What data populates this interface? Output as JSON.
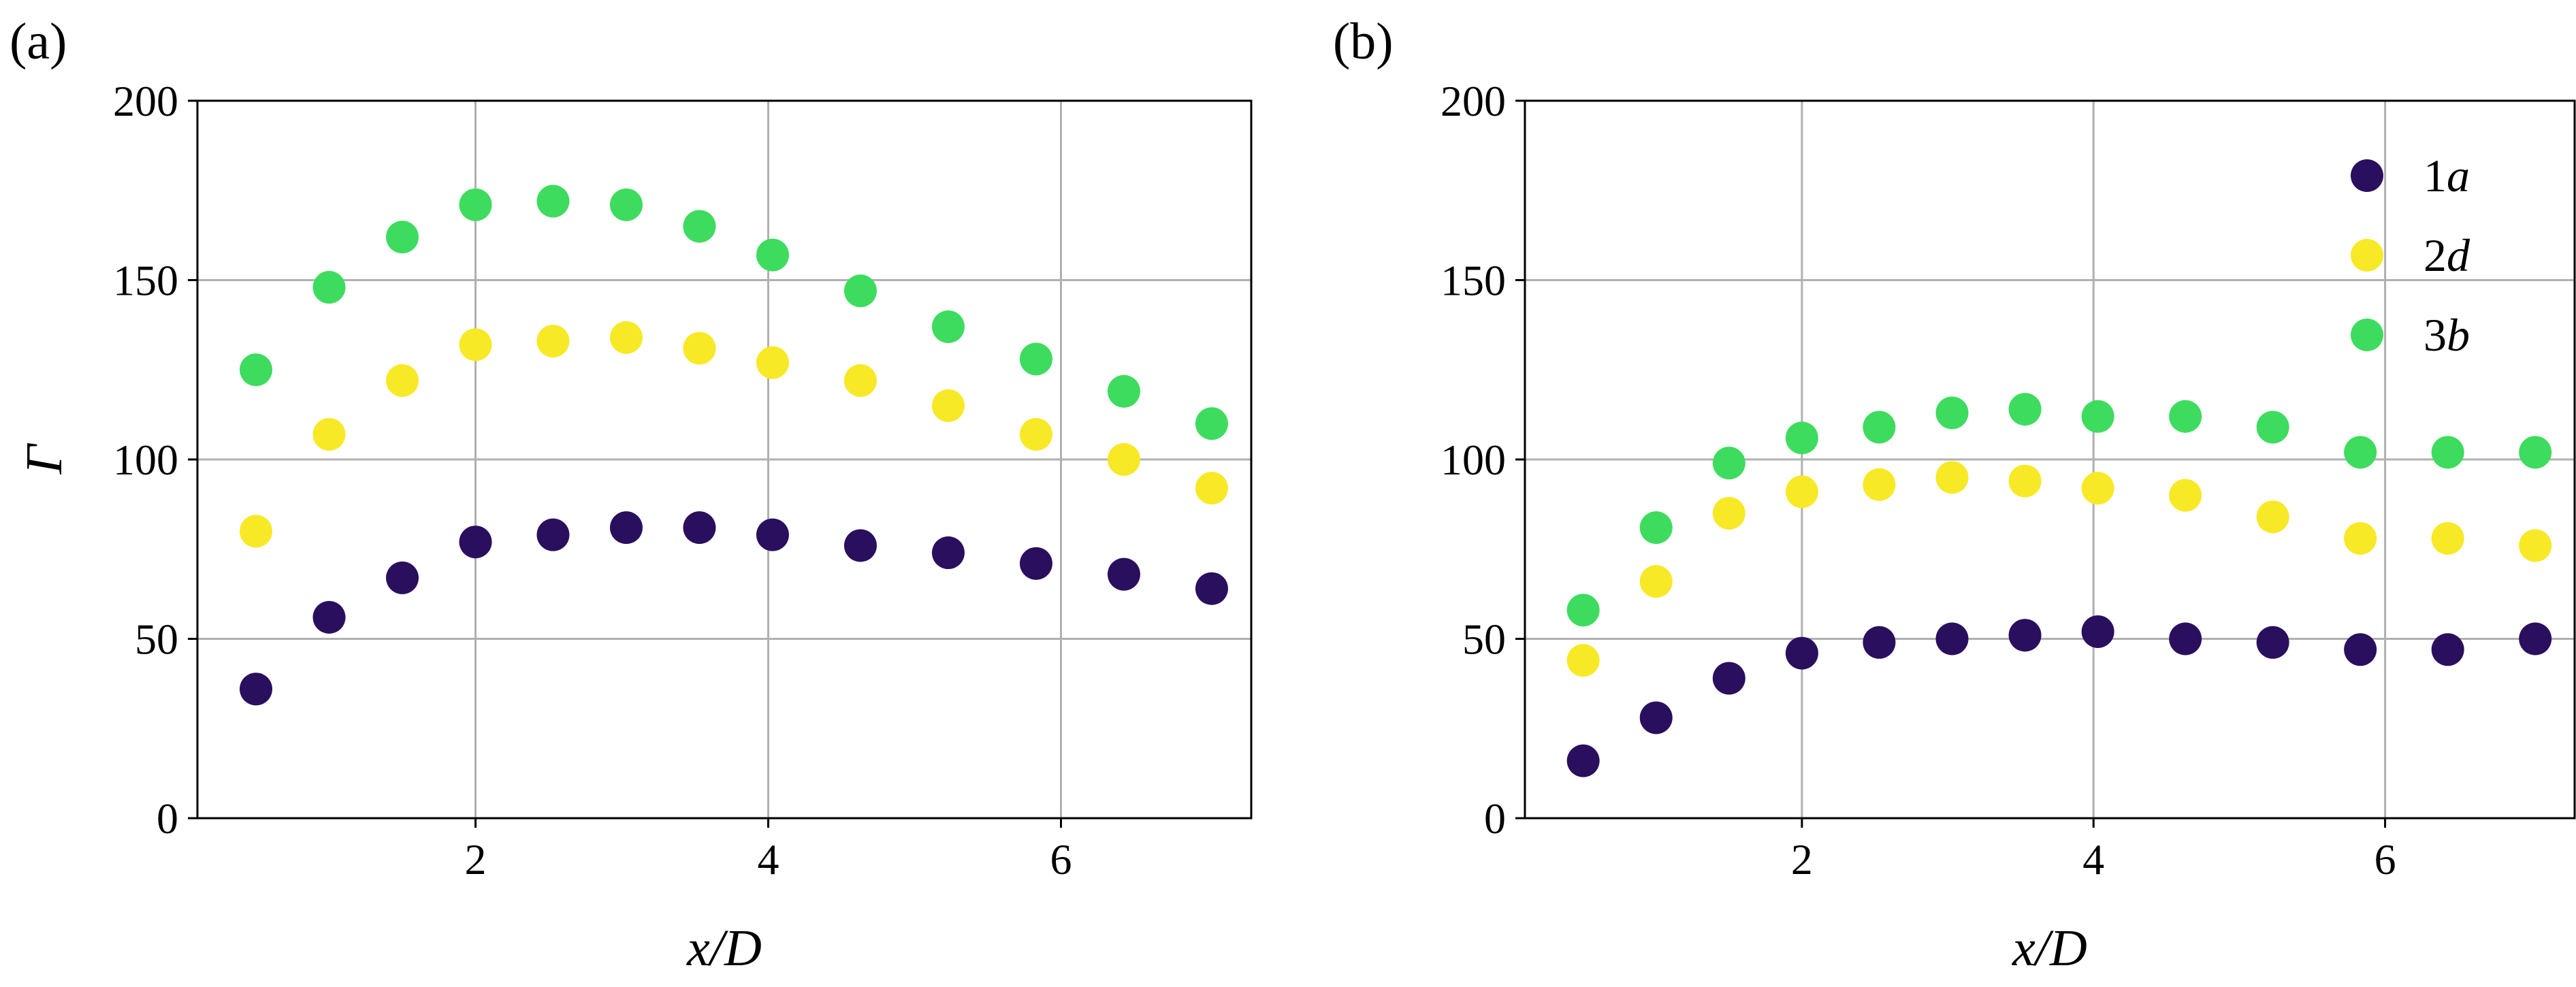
{
  "colors": {
    "1a": "#2a0f5e",
    "2d": "#f7e926",
    "3b": "#3ddc5e",
    "grid": "#b0b0b0"
  },
  "chart_data": [
    {
      "type": "scatter",
      "panel_label": "(a)",
      "xlabel": "x/D",
      "ylabel": "Γ",
      "xlim": [
        0.1,
        7.3
      ],
      "ylim": [
        0,
        200
      ],
      "xticks": [
        2,
        4,
        6
      ],
      "yticks": [
        0,
        50,
        100,
        150,
        200
      ],
      "grid": true,
      "legend": null,
      "x": [
        0.5,
        1.0,
        1.5,
        2.0,
        2.53,
        3.03,
        3.53,
        4.03,
        4.63,
        5.23,
        5.83,
        6.43,
        7.03
      ],
      "series": [
        {
          "name": "1a",
          "color": "#2a0f5e",
          "values": [
            36,
            56,
            67,
            77,
            79,
            81,
            81,
            79,
            76,
            74,
            71,
            68,
            64
          ]
        },
        {
          "name": "2d",
          "color": "#f7e926",
          "values": [
            80,
            107,
            122,
            132,
            133,
            134,
            131,
            127,
            122,
            115,
            107,
            100,
            92
          ]
        },
        {
          "name": "3b",
          "color": "#3ddc5e",
          "values": [
            125,
            148,
            162,
            171,
            172,
            171,
            165,
            157,
            147,
            137,
            128,
            119,
            110
          ]
        }
      ]
    },
    {
      "type": "scatter",
      "panel_label": "(b)",
      "xlabel": "x/D",
      "ylabel": "",
      "xlim": [
        0.1,
        7.3
      ],
      "ylim": [
        0,
        200
      ],
      "xticks": [
        2,
        4,
        6
      ],
      "yticks": [
        0,
        50,
        100,
        150,
        200
      ],
      "grid": true,
      "legend": "top-right",
      "x": [
        0.5,
        1.0,
        1.5,
        2.0,
        2.53,
        3.03,
        3.53,
        4.03,
        4.63,
        5.23,
        5.83,
        6.43,
        7.03
      ],
      "series": [
        {
          "name": "1a",
          "color": "#2a0f5e",
          "values": [
            16,
            28,
            39,
            46,
            49,
            50,
            51,
            52,
            50,
            49,
            47,
            47,
            50
          ]
        },
        {
          "name": "2d",
          "color": "#f7e926",
          "values": [
            44,
            66,
            85,
            91,
            93,
            95,
            94,
            92,
            90,
            84,
            78,
            78,
            76
          ]
        },
        {
          "name": "3b",
          "color": "#3ddc5e",
          "values": [
            58,
            81,
            99,
            106,
            109,
            113,
            114,
            112,
            112,
            109,
            102,
            102,
            102
          ]
        }
      ]
    }
  ]
}
